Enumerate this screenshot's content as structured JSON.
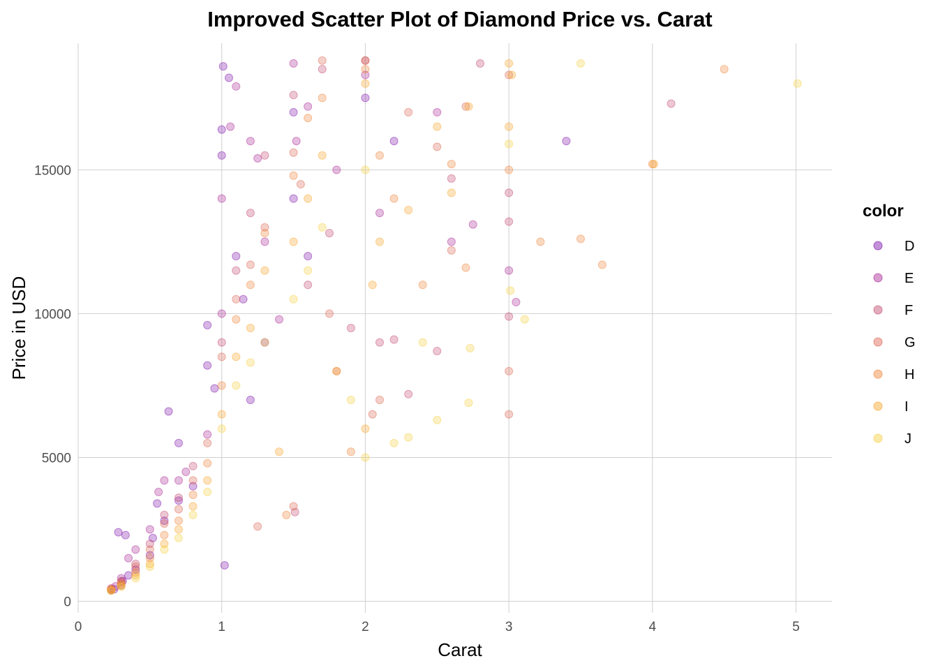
{
  "chart_data": {
    "type": "scatter",
    "title": "Improved Scatter Plot of Diamond Price vs. Carat",
    "xlabel": "Carat",
    "ylabel": "Price in USD",
    "xlim": [
      0,
      5.25
    ],
    "ylim": [
      -400,
      19400
    ],
    "x_ticks": [
      "0",
      "1",
      "2",
      "3",
      "4",
      "5"
    ],
    "x_tick_values": [
      0,
      1,
      2,
      3,
      4,
      5
    ],
    "y_ticks": [
      "0",
      "5000",
      "10000",
      "15000"
    ],
    "y_tick_values": [
      0,
      5000,
      10000,
      15000
    ],
    "grid": true,
    "legend": {
      "title": "color",
      "placement": "right"
    },
    "point_alpha": 0.3,
    "series": [
      {
        "name": "D",
        "color": "#7a0ca8",
        "points": [
          [
            0.23,
            380
          ],
          [
            0.25,
            420
          ],
          [
            0.3,
            550
          ],
          [
            0.31,
            700
          ],
          [
            0.35,
            900
          ],
          [
            0.4,
            1100
          ],
          [
            0.5,
            1600
          ],
          [
            0.52,
            2200
          ],
          [
            0.55,
            3400
          ],
          [
            0.6,
            2800
          ],
          [
            0.63,
            6600
          ],
          [
            0.7,
            5500
          ],
          [
            0.7,
            3500
          ],
          [
            0.8,
            4000
          ],
          [
            0.9,
            9600
          ],
          [
            0.9,
            8200
          ],
          [
            1.0,
            15500
          ],
          [
            1.0,
            16400
          ],
          [
            1.01,
            18600
          ],
          [
            1.05,
            18200
          ],
          [
            1.1,
            12000
          ],
          [
            1.02,
            1250
          ],
          [
            1.2,
            7000
          ],
          [
            1.5,
            17000
          ],
          [
            1.5,
            14000
          ],
          [
            1.6,
            12000
          ],
          [
            2.0,
            17500
          ],
          [
            2.2,
            16000
          ],
          [
            3.4,
            16000
          ],
          [
            0.95,
            7400
          ],
          [
            0.28,
            2400
          ],
          [
            0.33,
            2300
          ],
          [
            1.15,
            10500
          ],
          [
            1.3,
            9000
          ]
        ]
      },
      {
        "name": "E",
        "color": "#a92395",
        "points": [
          [
            0.23,
            400
          ],
          [
            0.26,
            520
          ],
          [
            0.3,
            800
          ],
          [
            0.35,
            1500
          ],
          [
            0.4,
            1800
          ],
          [
            0.5,
            2500
          ],
          [
            0.56,
            3800
          ],
          [
            0.6,
            4200
          ],
          [
            0.7,
            4200
          ],
          [
            0.75,
            4500
          ],
          [
            0.9,
            5800
          ],
          [
            1.0,
            10000
          ],
          [
            1.0,
            14000
          ],
          [
            1.06,
            16500
          ],
          [
            1.1,
            17900
          ],
          [
            1.2,
            16000
          ],
          [
            1.25,
            15400
          ],
          [
            1.5,
            18700
          ],
          [
            1.52,
            16000
          ],
          [
            1.6,
            17200
          ],
          [
            1.8,
            15000
          ],
          [
            2.0,
            18300
          ],
          [
            2.1,
            13500
          ],
          [
            2.5,
            17000
          ],
          [
            2.6,
            12500
          ],
          [
            2.75,
            13100
          ],
          [
            3.0,
            11500
          ],
          [
            3.05,
            10400
          ],
          [
            1.3,
            12500
          ],
          [
            1.4,
            9800
          ]
        ]
      },
      {
        "name": "F",
        "color": "#c2466d",
        "points": [
          [
            0.23,
            450
          ],
          [
            0.3,
            700
          ],
          [
            0.4,
            1300
          ],
          [
            0.5,
            2000
          ],
          [
            0.6,
            3000
          ],
          [
            0.7,
            3600
          ],
          [
            0.8,
            4700
          ],
          [
            1.0,
            9000
          ],
          [
            1.1,
            11500
          ],
          [
            1.2,
            13500
          ],
          [
            1.3,
            15500
          ],
          [
            1.5,
            17600
          ],
          [
            1.51,
            3100
          ],
          [
            1.6,
            11000
          ],
          [
            1.7,
            18500
          ],
          [
            1.75,
            12800
          ],
          [
            2.0,
            18800
          ],
          [
            2.1,
            9000
          ],
          [
            2.2,
            9100
          ],
          [
            2.3,
            7200
          ],
          [
            2.5,
            8700
          ],
          [
            2.6,
            14700
          ],
          [
            3.0,
            13200
          ],
          [
            3.0,
            9900
          ],
          [
            3.0,
            14200
          ],
          [
            4.13,
            17300
          ],
          [
            1.9,
            9500
          ],
          [
            2.8,
            18700
          ]
        ]
      },
      {
        "name": "G",
        "color": "#dc6350",
        "points": [
          [
            0.23,
            420
          ],
          [
            0.3,
            650
          ],
          [
            0.4,
            1200
          ],
          [
            0.5,
            1800
          ],
          [
            0.6,
            2700
          ],
          [
            0.7,
            3200
          ],
          [
            0.8,
            4200
          ],
          [
            0.9,
            5500
          ],
          [
            1.0,
            8500
          ],
          [
            1.1,
            10500
          ],
          [
            1.2,
            11700
          ],
          [
            1.3,
            13000
          ],
          [
            1.5,
            15600
          ],
          [
            1.55,
            14500
          ],
          [
            1.7,
            18800
          ],
          [
            1.75,
            10000
          ],
          [
            1.8,
            8000
          ],
          [
            2.0,
            18800
          ],
          [
            2.05,
            6500
          ],
          [
            2.1,
            7000
          ],
          [
            2.3,
            17000
          ],
          [
            2.5,
            15800
          ],
          [
            2.6,
            12200
          ],
          [
            2.7,
            17200
          ],
          [
            3.0,
            18300
          ],
          [
            3.0,
            8000
          ],
          [
            3.0,
            6500
          ],
          [
            1.25,
            2600
          ],
          [
            1.5,
            3300
          ]
        ]
      },
      {
        "name": "H",
        "color": "#ef8235",
        "points": [
          [
            0.23,
            400
          ],
          [
            0.3,
            600
          ],
          [
            0.4,
            1000
          ],
          [
            0.5,
            1500
          ],
          [
            0.6,
            2300
          ],
          [
            0.7,
            2800
          ],
          [
            0.8,
            3700
          ],
          [
            0.9,
            4800
          ],
          [
            1.0,
            7500
          ],
          [
            1.1,
            9800
          ],
          [
            1.2,
            11000
          ],
          [
            1.3,
            12800
          ],
          [
            1.5,
            14800
          ],
          [
            1.6,
            16800
          ],
          [
            1.7,
            17500
          ],
          [
            2.0,
            18500
          ],
          [
            2.1,
            15500
          ],
          [
            2.2,
            14000
          ],
          [
            2.4,
            11000
          ],
          [
            2.6,
            15200
          ],
          [
            2.7,
            11600
          ],
          [
            3.0,
            15000
          ],
          [
            3.22,
            12500
          ],
          [
            3.5,
            12600
          ],
          [
            3.65,
            11700
          ],
          [
            4.0,
            15200
          ],
          [
            4.5,
            18500
          ],
          [
            1.45,
            3000
          ],
          [
            1.9,
            5200
          ]
        ]
      },
      {
        "name": "I",
        "color": "#f9a326",
        "points": [
          [
            0.23,
            380
          ],
          [
            0.3,
            550
          ],
          [
            0.4,
            900
          ],
          [
            0.5,
            1300
          ],
          [
            0.6,
            2000
          ],
          [
            0.7,
            2500
          ],
          [
            0.8,
            3300
          ],
          [
            0.9,
            4200
          ],
          [
            1.0,
            6500
          ],
          [
            1.1,
            8500
          ],
          [
            1.2,
            9500
          ],
          [
            1.3,
            11500
          ],
          [
            1.5,
            12500
          ],
          [
            1.6,
            14000
          ],
          [
            1.7,
            15500
          ],
          [
            2.0,
            18000
          ],
          [
            2.05,
            11000
          ],
          [
            2.1,
            12500
          ],
          [
            2.3,
            13600
          ],
          [
            2.5,
            16500
          ],
          [
            2.6,
            14200
          ],
          [
            2.72,
            17200
          ],
          [
            3.0,
            18700
          ],
          [
            3.0,
            16500
          ],
          [
            3.02,
            18300
          ],
          [
            4.01,
            15200
          ],
          [
            1.4,
            5200
          ],
          [
            1.8,
            8000
          ],
          [
            2.0,
            6000
          ]
        ]
      },
      {
        "name": "J",
        "color": "#f6cf3e",
        "points": [
          [
            0.23,
            370
          ],
          [
            0.3,
            500
          ],
          [
            0.4,
            800
          ],
          [
            0.5,
            1200
          ],
          [
            0.6,
            1800
          ],
          [
            0.7,
            2200
          ],
          [
            0.8,
            3000
          ],
          [
            0.9,
            3800
          ],
          [
            1.0,
            6000
          ],
          [
            1.1,
            7500
          ],
          [
            1.2,
            8300
          ],
          [
            1.3,
            9000
          ],
          [
            1.5,
            10500
          ],
          [
            1.6,
            11500
          ],
          [
            1.7,
            13000
          ],
          [
            2.0,
            15000
          ],
          [
            2.0,
            5000
          ],
          [
            2.2,
            5500
          ],
          [
            2.3,
            5700
          ],
          [
            2.5,
            6300
          ],
          [
            2.72,
            6900
          ],
          [
            2.73,
            8800
          ],
          [
            3.0,
            15900
          ],
          [
            3.01,
            10800
          ],
          [
            3.11,
            9800
          ],
          [
            3.5,
            18700
          ],
          [
            5.01,
            18000
          ],
          [
            1.9,
            7000
          ],
          [
            2.4,
            9000
          ]
        ]
      }
    ]
  }
}
